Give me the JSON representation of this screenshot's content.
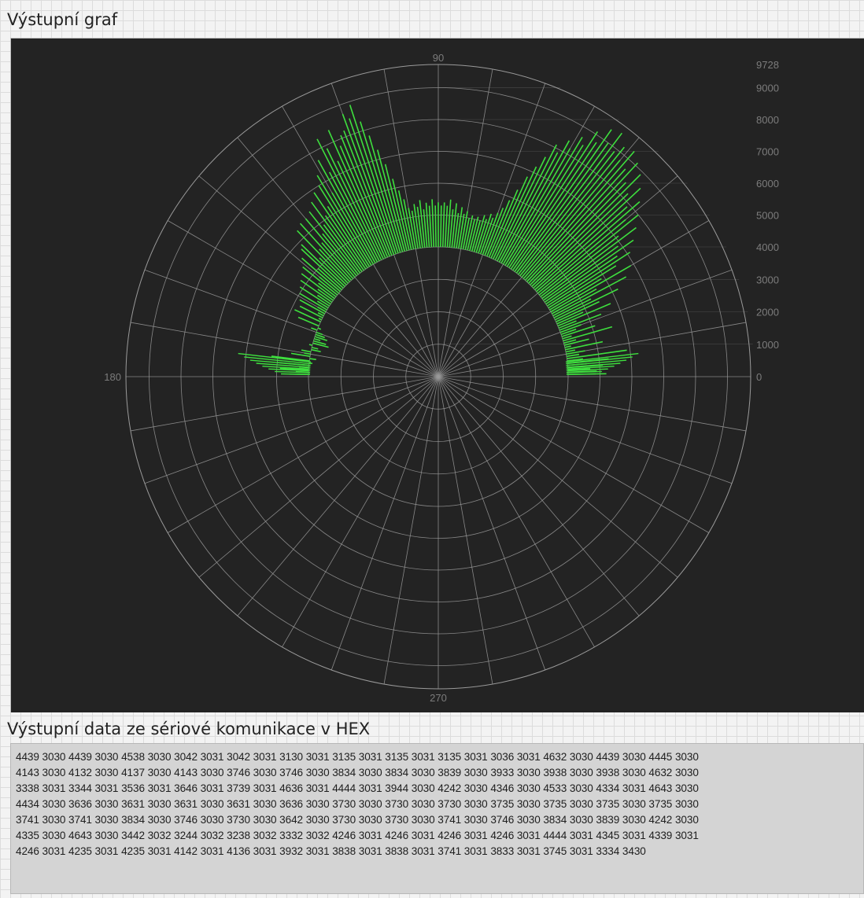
{
  "graph_panel": {
    "title": "Výstupní graf"
  },
  "data_panel": {
    "title": "Výstupní data ze sériové komunikace v HEX",
    "hex_lines": [
      "4439 3030 4439 3030 4538 3030 3042 3031 3042 3031 3130 3031 3135 3031 3135 3031 3135 3031 3036 3031 4632 3030 4439 3030 4445 3030",
      "4143 3030 4132 3030 4137 3030 4143 3030 3746 3030 3746 3030 3834 3030 3834 3030 3839 3030 3933 3030 3938 3030 3938 3030 4632 3030",
      "3338 3031 3344 3031 3536 3031 3646 3031 3739 3031 4636 3031 4444 3031 3944 3030 4242 3030 4346 3030 4533 3030 4334 3031 4643 3030",
      "4434 3030 3636 3030 3631 3030 3631 3030 3631 3030 3636 3030 3730 3030 3730 3030 3730 3030 3735 3030 3735 3030 3735 3030 3735 3030",
      "3741 3030 3741 3030 3834 3030 3746 3030 3730 3030 3642 3030 3730 3030 3730 3030 3741 3030 3746 3030 3834 3030 3839 3030 4242 3030",
      "4335 3030 4643 3030 3442 3032 3244 3032 3238 3032 3332 3032 4246 3031 4246 3031 4246 3031 4246 3031 4444 3031 4345 3031 4339 3031",
      "4246 3031 4235 3031 4235 3031 4142 3031 4136 3031 3932 3031 3838 3031 3838 3031 3741 3031 3833 3031 3745 3031 3334 3430"
    ]
  },
  "chart_data": {
    "type": "polar",
    "angle_labels": [
      "90",
      "180",
      "270"
    ],
    "radial_tick_labels": [
      "9728",
      "9000",
      "8000",
      "7000",
      "6000",
      "5000",
      "4000",
      "3000",
      "2000",
      "1000",
      "0"
    ],
    "radial_range": [
      0,
      9728
    ],
    "grid": true,
    "line_color": "#3ee03e",
    "background": "#232323",
    "grid_color": "#9a9a9a",
    "series": [
      {
        "data": [
          [
            1,
            5200
          ],
          [
            2,
            4900
          ],
          [
            3,
            4700
          ],
          [
            4,
            5100
          ],
          [
            5,
            4600
          ],
          [
            6,
            5300
          ],
          [
            7,
            4500
          ],
          [
            8,
            5900
          ],
          [
            9,
            4400
          ],
          [
            10,
            4600
          ],
          [
            11,
            4300
          ],
          [
            12,
            5200
          ],
          [
            13,
            4200
          ],
          [
            14,
            4800
          ],
          [
            15,
            4400
          ],
          [
            16,
            5600
          ],
          [
            17,
            4300
          ],
          [
            18,
            5100
          ],
          [
            19,
            4500
          ],
          [
            20,
            4700
          ],
          [
            21,
            5400
          ],
          [
            22,
            4600
          ],
          [
            23,
            5800
          ],
          [
            24,
            4900
          ],
          [
            25,
            5500
          ],
          [
            26,
            6200
          ],
          [
            27,
            5300
          ],
          [
            28,
            6600
          ],
          [
            29,
            5600
          ],
          [
            30,
            6900
          ],
          [
            31,
            5900
          ],
          [
            32,
            6500
          ],
          [
            33,
            7100
          ],
          [
            34,
            6700
          ],
          [
            35,
            7400
          ],
          [
            36,
            6900
          ],
          [
            37,
            7700
          ],
          [
            38,
            7100
          ],
          [
            39,
            8000
          ],
          [
            40,
            7600
          ],
          [
            41,
            8300
          ],
          [
            42,
            7900
          ],
          [
            43,
            8600
          ],
          [
            44,
            8200
          ],
          [
            45,
            8900
          ],
          [
            46,
            8400
          ],
          [
            47,
            9100
          ],
          [
            48,
            8700
          ],
          [
            49,
            9300
          ],
          [
            50,
            8800
          ],
          [
            51,
            9200
          ],
          [
            52,
            8900
          ],
          [
            53,
            9500
          ],
          [
            54,
            9000
          ],
          [
            55,
            9400
          ],
          [
            56,
            8800
          ],
          [
            57,
            9100
          ],
          [
            58,
            8500
          ],
          [
            59,
            8700
          ],
          [
            60,
            8200
          ],
          [
            61,
            8400
          ],
          [
            62,
            7900
          ],
          [
            63,
            8100
          ],
          [
            64,
            7600
          ],
          [
            65,
            7200
          ],
          [
            66,
            6800
          ],
          [
            67,
            6300
          ],
          [
            68,
            5900
          ],
          [
            69,
            5600
          ],
          [
            70,
            5400
          ],
          [
            71,
            5200
          ],
          [
            72,
            5300
          ],
          [
            73,
            5100
          ],
          [
            74,
            5200
          ],
          [
            75,
            5000
          ],
          [
            76,
            5100
          ],
          [
            77,
            5000
          ],
          [
            78,
            5100
          ],
          [
            79,
            5000
          ],
          [
            80,
            5200
          ],
          [
            81,
            5100
          ],
          [
            82,
            5300
          ],
          [
            83,
            5100
          ],
          [
            84,
            5400
          ],
          [
            85,
            5200
          ],
          [
            86,
            5500
          ],
          [
            87,
            5300
          ],
          [
            88,
            5400
          ],
          [
            89,
            5300
          ],
          [
            90,
            5400
          ],
          [
            91,
            5300
          ],
          [
            92,
            5500
          ],
          [
            93,
            5300
          ],
          [
            94,
            5400
          ],
          [
            95,
            5200
          ],
          [
            96,
            5500
          ],
          [
            97,
            5300
          ],
          [
            98,
            5400
          ],
          [
            99,
            5200
          ],
          [
            100,
            5300
          ],
          [
            101,
            5600
          ],
          [
            102,
            5900
          ],
          [
            103,
            6300
          ],
          [
            104,
            6800
          ],
          [
            105,
            7300
          ],
          [
            106,
            7800
          ],
          [
            107,
            8300
          ],
          [
            108,
            8900
          ],
          [
            109,
            8500
          ],
          [
            110,
            8700
          ],
          [
            111,
            8200
          ],
          [
            112,
            8100
          ],
          [
            113,
            7800
          ],
          [
            114,
            8400
          ],
          [
            115,
            7400
          ],
          [
            116,
            7900
          ],
          [
            117,
            8300
          ],
          [
            118,
            7200
          ],
          [
            119,
            7700
          ],
          [
            120,
            6600
          ],
          [
            121,
            7300
          ],
          [
            122,
            7000
          ],
          [
            123,
            6300
          ],
          [
            124,
            6900
          ],
          [
            125,
            6100
          ],
          [
            126,
            6700
          ],
          [
            127,
            5900
          ],
          [
            128,
            6500
          ],
          [
            129,
            5700
          ],
          [
            130,
            6400
          ],
          [
            131,
            5500
          ],
          [
            132,
            6400
          ],
          [
            133,
            5400
          ],
          [
            134,
            6300
          ],
          [
            135,
            5200
          ],
          [
            136,
            5900
          ],
          [
            137,
            5800
          ],
          [
            138,
            5000
          ],
          [
            139,
            5600
          ],
          [
            140,
            4800
          ],
          [
            141,
            5400
          ],
          [
            142,
            4700
          ],
          [
            143,
            5300
          ],
          [
            144,
            4600
          ],
          [
            145,
            5200
          ],
          [
            146,
            4500
          ],
          [
            147,
            5100
          ],
          [
            148,
            4400
          ],
          [
            149,
            5000
          ],
          [
            150,
            4300
          ],
          [
            151,
            4900
          ],
          [
            152,
            4200
          ],
          [
            153,
            4800
          ],
          [
            154,
            4100
          ],
          [
            155,
            4900
          ],
          [
            156,
            4000
          ],
          [
            157,
            4700
          ],
          [
            158,
            3900
          ],
          [
            159,
            4200
          ],
          [
            160,
            3800
          ],
          [
            161,
            3700
          ],
          [
            162,
            3600
          ],
          [
            163,
            3800
          ],
          [
            164,
            3600
          ],
          [
            165,
            3500
          ],
          [
            166,
            4100
          ],
          [
            167,
            3800
          ],
          [
            168,
            3700
          ],
          [
            169,
            4300
          ],
          [
            170,
            4200
          ],
          [
            171,
            4600
          ],
          [
            172,
            3800
          ],
          [
            173,
            5200
          ],
          [
            174,
            3900
          ],
          [
            175,
            5000
          ],
          [
            176,
            4300
          ],
          [
            177,
            4900
          ],
          [
            178,
            4400
          ],
          [
            179,
            4600
          ]
        ]
      }
    ]
  }
}
